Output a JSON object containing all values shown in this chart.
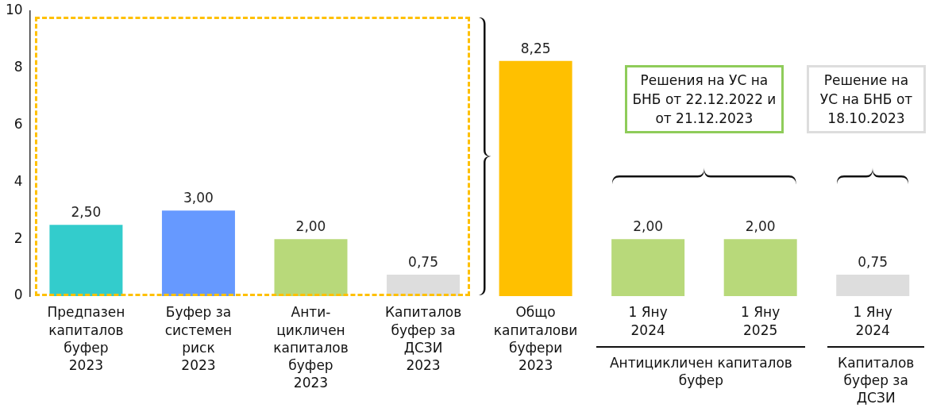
{
  "chart_data": {
    "type": "bar",
    "categories": [
      "Предпазен капиталов буфер 2023",
      "Буфер за системен риск 2023",
      "Анти-цикличен капиталов буфер 2023",
      "Капиталов буфер за ДСЗИ 2023",
      "Общо капиталови буфери 2023",
      "1 Яну 2024",
      "1 Яну 2025",
      "1 Яну 2024"
    ],
    "values": [
      2.5,
      3,
      2,
      0.75,
      8.25,
      2,
      2,
      0.75
    ],
    "colors": [
      "#33cccc",
      "#6699ff",
      "#b8d97a",
      "#dddddd",
      "#ffc000",
      "#b8d97a",
      "#b8d97a",
      "#dddddd"
    ],
    "value_labels": [
      "2,50",
      "3,00",
      "2,00",
      "0,75",
      "8,25",
      "2,00",
      "2,00",
      "0,75"
    ],
    "ylim": [
      0,
      10
    ],
    "yticks": [
      0,
      2,
      4,
      6,
      8,
      10
    ],
    "legend": false,
    "annotations": [
      "Решения на УС на БНБ от 22.12.2022 и от 21.12.2023",
      "Решение на УС на БНБ от 18.10.2023",
      "Антицикличен капиталов буфер",
      "Капиталов буфер за ДСЗИ"
    ]
  }
}
